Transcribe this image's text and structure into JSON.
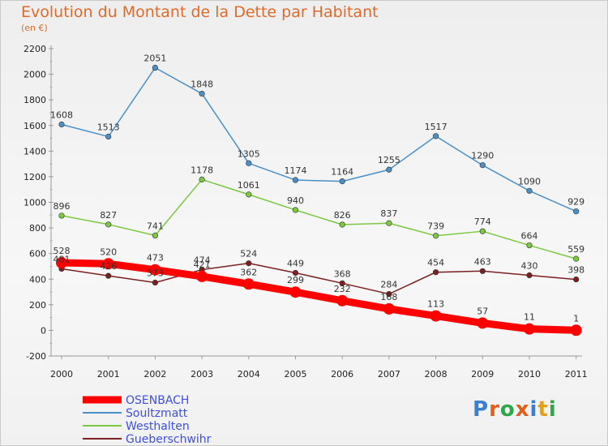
{
  "title": "Evolution du Montant de la Dette par Habitant",
  "subtitle": "(en €)",
  "logo": {
    "text": "Proxiti",
    "letters": [
      "P",
      "r",
      "o",
      "x",
      "i",
      "t",
      "i"
    ],
    "colors": [
      "#3a7fd0",
      "#e0601a",
      "#2aa84a",
      "#e0601a",
      "#3a7fd0",
      "#e0a020",
      "#2aa84a"
    ]
  },
  "chart_data": {
    "type": "line",
    "title": "Evolution du Montant de la Dette par Habitant",
    "subtitle": "(en €)",
    "xlabel": "",
    "ylabel": "",
    "ylim": [
      -200,
      2200
    ],
    "yticks": [
      -200,
      0,
      200,
      400,
      600,
      800,
      1000,
      1200,
      1400,
      1600,
      1800,
      2000,
      2200
    ],
    "x": [
      "2000",
      "2001",
      "2002",
      "2003",
      "2004",
      "2005",
      "2006",
      "2007",
      "2008",
      "2009",
      "2010",
      "2011"
    ],
    "grid": false,
    "legend": "bottom-left",
    "series": [
      {
        "name": "OSENBACH",
        "color": "#ff0000",
        "values": [
          528,
          520,
          473,
          421,
          362,
          299,
          232,
          168,
          113,
          57,
          11,
          1
        ],
        "labels": [
          "528",
          "520",
          "473",
          "421",
          "362",
          "299",
          "232",
          "168",
          "113",
          "57",
          "11",
          "1"
        ]
      },
      {
        "name": "Soultzmatt",
        "color": "#4a90c8",
        "values": [
          1608,
          1513,
          2051,
          1848,
          1305,
          1174,
          1164,
          1255,
          1517,
          1290,
          1090,
          929
        ],
        "labels": [
          "1608",
          "1513",
          "2051",
          "1848",
          "1305",
          "1174",
          "1164",
          "1255",
          "1517",
          "1290",
          "1090",
          "929"
        ]
      },
      {
        "name": "Westhalten",
        "color": "#7cc840",
        "values": [
          896,
          827,
          741,
          1178,
          1061,
          940,
          826,
          837,
          739,
          774,
          664,
          559
        ],
        "labels": [
          "896",
          "827",
          "741",
          "1178",
          "1061",
          "940",
          "826",
          "837",
          "739",
          "774",
          "664",
          "559"
        ]
      },
      {
        "name": "Gueberschwihr",
        "color": "#7a2020",
        "values": [
          481,
          426,
          373,
          474,
          524,
          449,
          368,
          284,
          454,
          463,
          430,
          398
        ],
        "labels": [
          "481",
          "426",
          "373",
          "474",
          "524",
          "449",
          "368",
          "284",
          "454",
          "463",
          "430",
          "398"
        ]
      }
    ]
  }
}
